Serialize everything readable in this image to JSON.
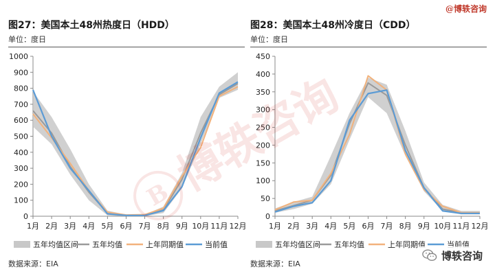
{
  "brand": "@博轶咨询",
  "watermark": "博轶咨询",
  "wechat_account": "博轶咨询",
  "colors": {
    "band": "#c8c8c8",
    "avg": "#9a9a9a",
    "last_year": "#f2b27c",
    "current": "#5b9bd5"
  },
  "chart_data": [
    {
      "type": "line",
      "title": "图27：美国本土48州热度日（HDD）",
      "unit": "单位：度日",
      "source": "数据来源：EIA",
      "categories": [
        "1月",
        "2月",
        "3月",
        "4月",
        "5月",
        "6月",
        "7月",
        "8月",
        "9月",
        "10月",
        "11月",
        "12月"
      ],
      "ylim": [
        0,
        1000
      ],
      "yticks": [
        0,
        100,
        200,
        300,
        400,
        500,
        600,
        700,
        800,
        900,
        1000
      ],
      "grid": false,
      "legend_position": "bottom",
      "band": {
        "name": "五年均值区间",
        "low": [
          560,
          450,
          260,
          100,
          5,
          0,
          0,
          20,
          175,
          450,
          740,
          790
        ],
        "high": [
          780,
          620,
          420,
          200,
          35,
          10,
          10,
          60,
          270,
          620,
          810,
          900
        ]
      },
      "series": [
        {
          "name": "五年均值",
          "values": [
            660,
            520,
            310,
            150,
            20,
            5,
            5,
            40,
            230,
            520,
            760,
            830
          ]
        },
        {
          "name": "上年同期值",
          "values": [
            640,
            490,
            330,
            160,
            25,
            8,
            10,
            50,
            250,
            430,
            750,
            810
          ]
        },
        {
          "name": "当前值",
          "values": [
            790,
            500,
            300,
            160,
            15,
            5,
            5,
            35,
            185,
            490,
            770,
            840
          ]
        }
      ]
    },
    {
      "type": "line",
      "title": "图28：美国本土48州冷度日（CDD）",
      "unit": "单位：度日",
      "source": "数据来源：EIA",
      "categories": [
        "1月",
        "2月",
        "3月",
        "4月",
        "5月",
        "6月",
        "7月",
        "8月",
        "9月",
        "10月",
        "11月",
        "12月"
      ],
      "ylim": [
        0,
        450
      ],
      "yticks": [
        0,
        50,
        100,
        150,
        200,
        250,
        300,
        350,
        400,
        450
      ],
      "grid": false,
      "legend_position": "bottom",
      "band": {
        "name": "五年均值区间",
        "low": [
          10,
          20,
          35,
          90,
          215,
          335,
          290,
          170,
          70,
          15,
          5,
          5
        ],
        "high": [
          22,
          40,
          55,
          170,
          290,
          390,
          370,
          240,
          95,
          32,
          15,
          15
        ]
      },
      "series": [
        {
          "name": "五年均值",
          "values": [
            15,
            30,
            45,
            115,
            260,
            375,
            340,
            200,
            80,
            20,
            10,
            10
          ]
        },
        {
          "name": "上年同期值",
          "values": [
            18,
            40,
            45,
            120,
            230,
            395,
            355,
            175,
            75,
            28,
            10,
            10
          ]
        },
        {
          "name": "当前值",
          "values": [
            12,
            28,
            38,
            100,
            270,
            345,
            355,
            185,
            80,
            15,
            8,
            8
          ]
        }
      ]
    }
  ]
}
